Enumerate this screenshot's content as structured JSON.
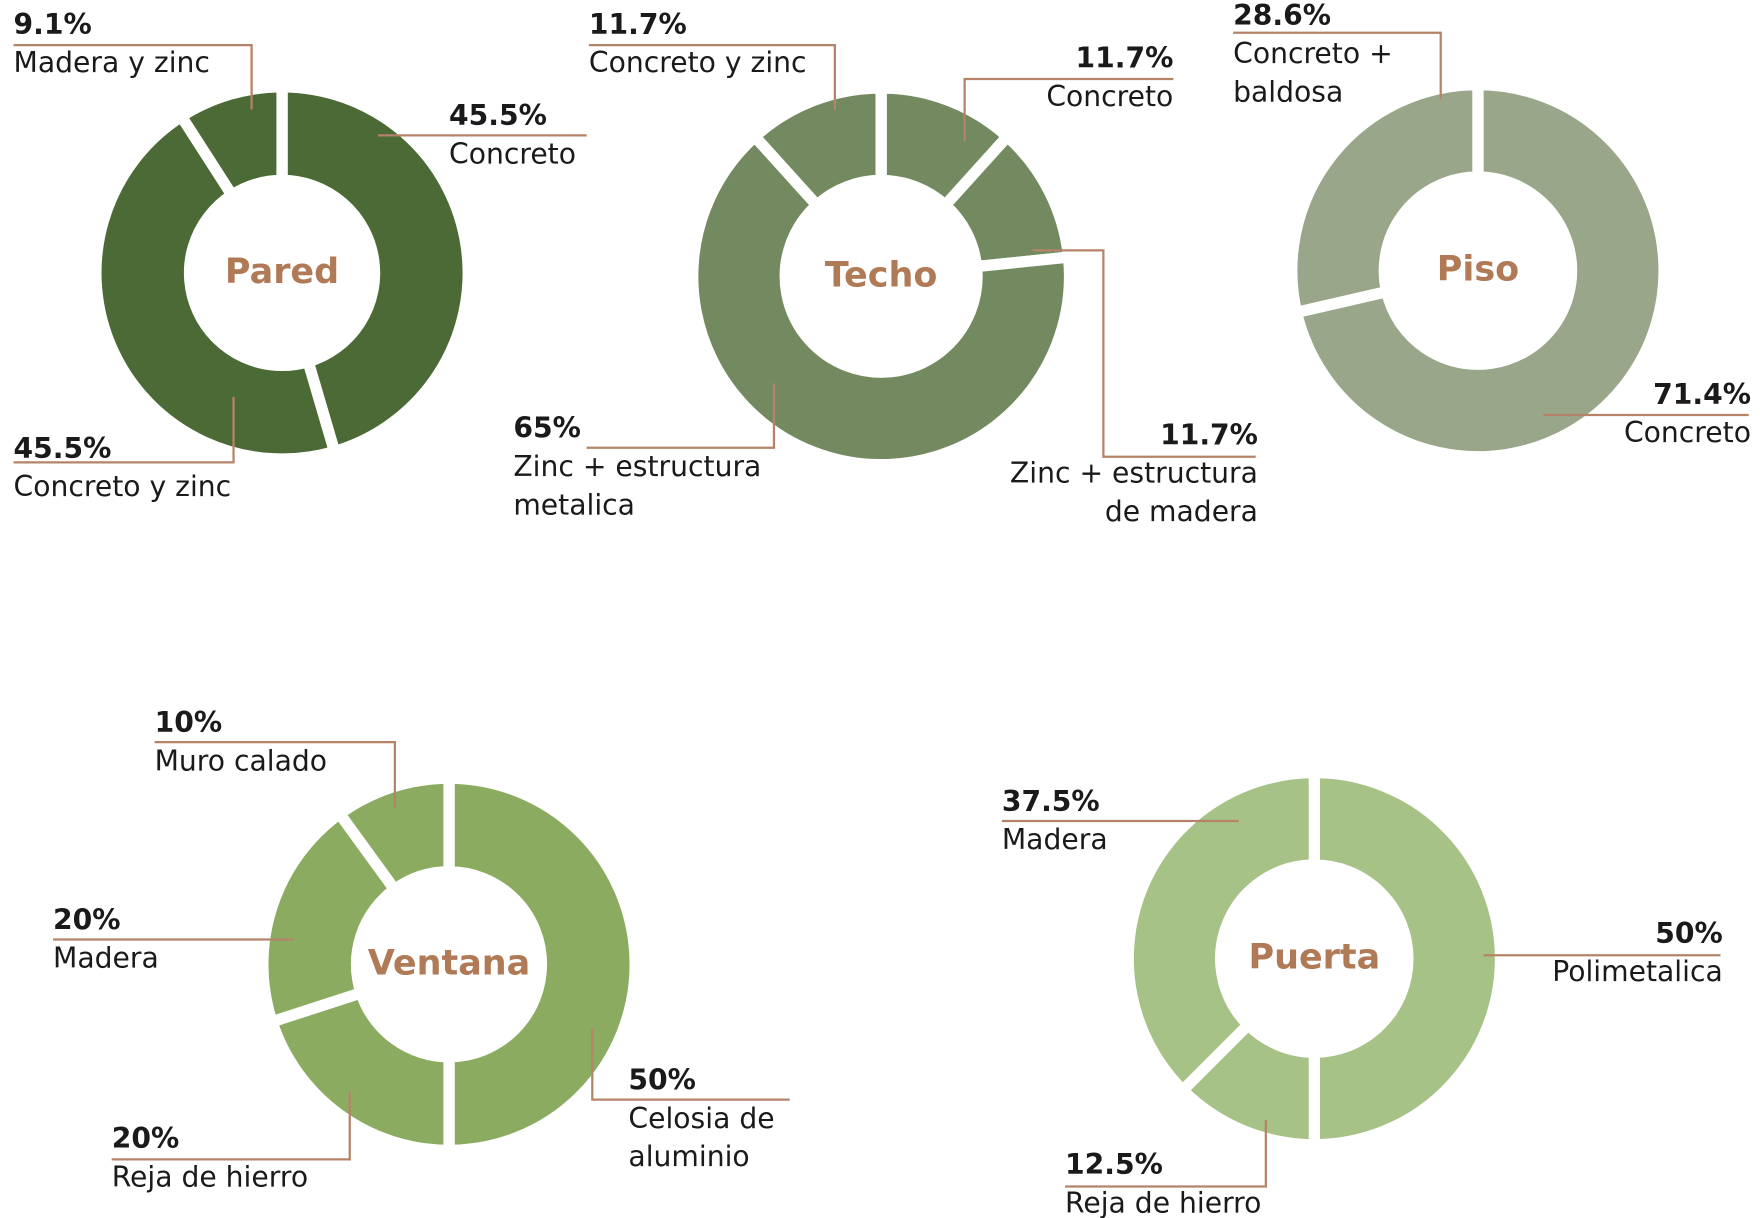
{
  "chart_data": [
    {
      "type": "pie",
      "title": "Pared",
      "color": "#4b6a36",
      "categories": [
        "Concreto",
        "Concreto y zinc",
        "Madera y zinc"
      ],
      "values": [
        45.5,
        45.5,
        9.1
      ],
      "value_labels": [
        "45.5%",
        "45.5%",
        "9.1%"
      ]
    },
    {
      "type": "pie",
      "title": "Techo",
      "color": "#738a61",
      "categories": [
        "Concreto",
        "Zinc + estructura de madera",
        "Zinc + estructura metalica",
        "Concreto y zinc"
      ],
      "values": [
        11.7,
        11.7,
        65,
        11.7
      ],
      "value_labels": [
        "11.7%",
        "11.7%",
        "65%",
        "11.7%"
      ]
    },
    {
      "type": "pie",
      "title": "Piso",
      "color": "#99a689",
      "categories": [
        "Concreto",
        "Concreto + baldosa"
      ],
      "values": [
        71.4,
        28.6
      ],
      "value_labels": [
        "71.4%",
        "28.6%"
      ]
    },
    {
      "type": "pie",
      "title": "Ventana",
      "color": "#8bab60",
      "categories": [
        "Celosia de aluminio",
        "Reja de hierro",
        "Madera",
        "Muro calado"
      ],
      "values": [
        50,
        20,
        20,
        10
      ],
      "value_labels": [
        "50%",
        "20%",
        "20%",
        "10%"
      ]
    },
    {
      "type": "pie",
      "title": "Puerta",
      "color": "#a7c287",
      "categories": [
        "Polimetalica",
        "Reja de hierro",
        "Madera"
      ],
      "values": [
        50,
        12.5,
        37.5
      ],
      "value_labels": [
        "50%",
        "12.5%",
        "37.5%"
      ]
    }
  ]
}
